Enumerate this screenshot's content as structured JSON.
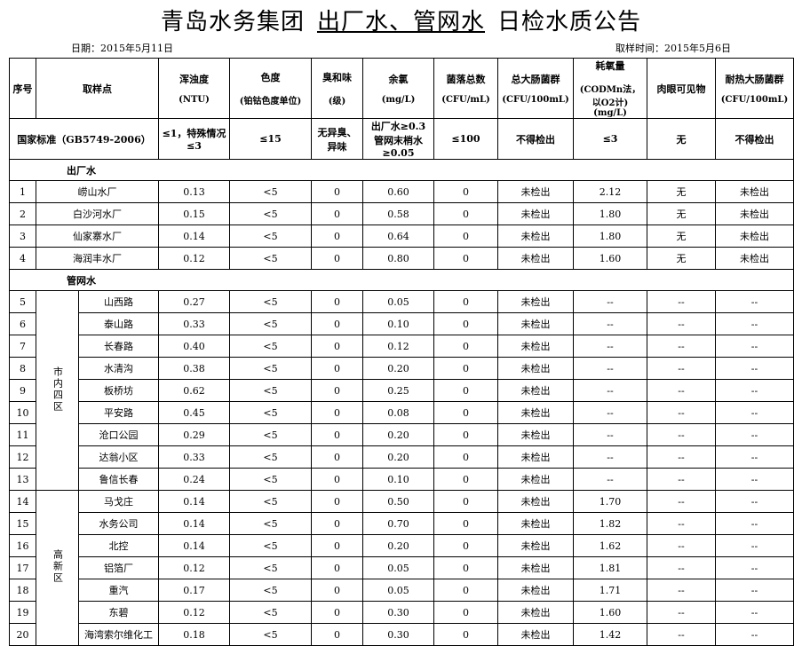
{
  "title": {
    "prefix": "青岛水务集团",
    "highlight": "出厂水、管网水",
    "suffix": "日检水质公告"
  },
  "report_date": "日期：2015年5月11日",
  "sampling_time": "取样时间：2015年5月6日",
  "header": {
    "seq": "序号",
    "point": "取样点",
    "columns": [
      {
        "name": "浑浊度",
        "unit": "(NTU)"
      },
      {
        "name": "色度",
        "unit": "(铂钴色度单位)"
      },
      {
        "name": "臭和味",
        "unit": "(级)"
      },
      {
        "name": "余氯",
        "unit": "(mg/L)"
      },
      {
        "name": "菌落总数",
        "unit": "(CFU/mL)"
      },
      {
        "name": "总大肠菌群",
        "unit": "(CFU/100mL)"
      },
      {
        "name": "耗氧量",
        "unit": "(CODMn法，以O2计)(mg/L)"
      },
      {
        "name": "肉眼可见物"
      },
      {
        "name": "耐热大肠菌群",
        "unit": "(CFU/100mL)"
      }
    ]
  },
  "standard": {
    "label": "国家标准（GB5749-2006）",
    "values": [
      "≤1，特殊情况≤3",
      "≤15",
      "无异臭、异味",
      "出厂水≥0.3 管网末梢水≥0.05",
      "≤100",
      "不得检出",
      "≤3",
      "无",
      "不得检出"
    ]
  },
  "sections": [
    {
      "name": "出厂水",
      "rows": [
        [
          "1",
          "崂山水厂",
          "0.13",
          "<5",
          "0",
          "0.60",
          "0",
          "未检出",
          "2.12",
          "无",
          "未检出"
        ],
        [
          "2",
          "白沙河水厂",
          "0.15",
          "<5",
          "0",
          "0.58",
          "0",
          "未检出",
          "1.80",
          "无",
          "未检出"
        ],
        [
          "3",
          "仙家寨水厂",
          "0.14",
          "<5",
          "0",
          "0.64",
          "0",
          "未检出",
          "1.80",
          "无",
          "未检出"
        ],
        [
          "4",
          "海润丰水厂",
          "0.12",
          "<5",
          "0",
          "0.80",
          "0",
          "未检出",
          "1.60",
          "无",
          "未检出"
        ]
      ]
    },
    {
      "name": "管网水",
      "groups": [
        {
          "name": "市内四区",
          "rows": [
            [
              "5",
              "山西路",
              "0.27",
              "<5",
              "0",
              "0.05",
              "0",
              "未检出",
              "--",
              "--",
              "--"
            ],
            [
              "6",
              "泰山路",
              "0.33",
              "<5",
              "0",
              "0.10",
              "0",
              "未检出",
              "--",
              "--",
              "--"
            ],
            [
              "7",
              "长春路",
              "0.40",
              "<5",
              "0",
              "0.12",
              "0",
              "未检出",
              "--",
              "--",
              "--"
            ],
            [
              "8",
              "水清沟",
              "0.38",
              "<5",
              "0",
              "0.20",
              "0",
              "未检出",
              "--",
              "--",
              "--"
            ],
            [
              "9",
              "板桥坊",
              "0.62",
              "<5",
              "0",
              "0.25",
              "0",
              "未检出",
              "--",
              "--",
              "--"
            ],
            [
              "10",
              "平安路",
              "0.45",
              "<5",
              "0",
              "0.08",
              "0",
              "未检出",
              "--",
              "--",
              "--"
            ],
            [
              "11",
              "沧口公园",
              "0.29",
              "<5",
              "0",
              "0.20",
              "0",
              "未检出",
              "--",
              "--",
              "--"
            ],
            [
              "12",
              "达翁小区",
              "0.33",
              "<5",
              "0",
              "0.20",
              "0",
              "未检出",
              "--",
              "--",
              "--"
            ],
            [
              "13",
              "鲁信长春",
              "0.24",
              "<5",
              "0",
              "0.10",
              "0",
              "未检出",
              "--",
              "--",
              "--"
            ]
          ]
        },
        {
          "name": "高新区",
          "rows": [
            [
              "14",
              "马戈庄",
              "0.14",
              "<5",
              "0",
              "0.50",
              "0",
              "未检出",
              "1.70",
              "--",
              "--"
            ],
            [
              "15",
              "水务公司",
              "0.14",
              "<5",
              "0",
              "0.70",
              "0",
              "未检出",
              "1.82",
              "--",
              "--"
            ],
            [
              "16",
              "北控",
              "0.14",
              "<5",
              "0",
              "0.20",
              "0",
              "未检出",
              "1.62",
              "--",
              "--"
            ],
            [
              "17",
              "铝箔厂",
              "0.12",
              "<5",
              "0",
              "0.05",
              "0",
              "未检出",
              "1.81",
              "--",
              "--"
            ],
            [
              "18",
              "重汽",
              "0.17",
              "<5",
              "0",
              "0.05",
              "0",
              "未检出",
              "1.71",
              "--",
              "--"
            ],
            [
              "19",
              "东碧",
              "0.12",
              "<5",
              "0",
              "0.30",
              "0",
              "未检出",
              "1.60",
              "--",
              "--"
            ],
            [
              "20",
              "海湾索尔维化工",
              "0.18",
              "<5",
              "0",
              "0.30",
              "0",
              "未检出",
              "1.42",
              "--",
              "--"
            ]
          ]
        }
      ]
    }
  ]
}
